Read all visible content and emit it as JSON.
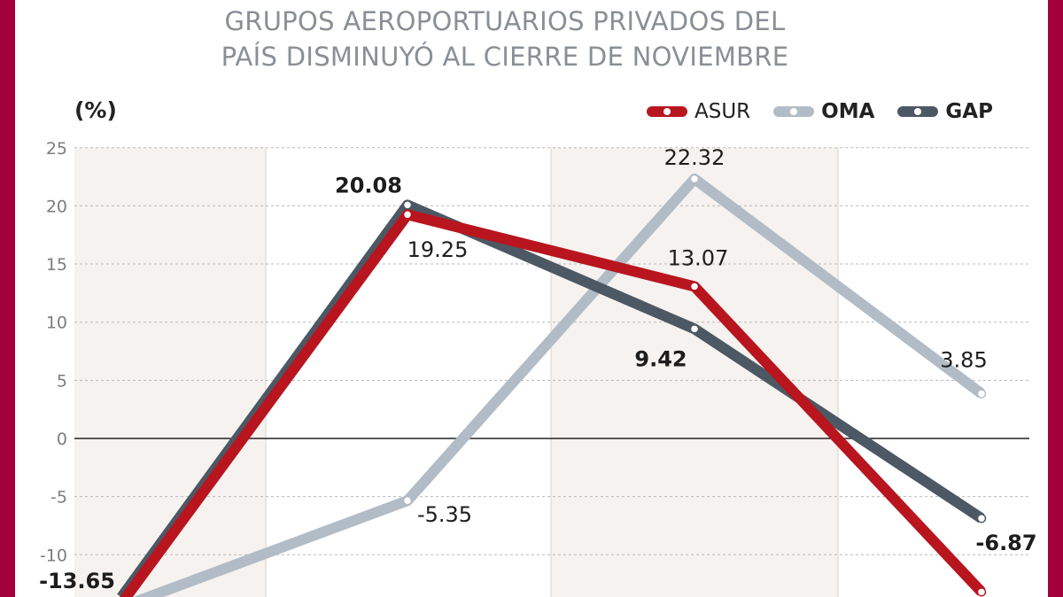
{
  "chart_data": {
    "type": "line",
    "title_lines": [
      "GRUPOS AEROPORTUARIOS PRIVADOS DEL",
      "PAÍS DISMINUYÓ AL CIERRE DE NOVIEMBRE"
    ],
    "ylabel": "(%)",
    "ylim": [
      -14,
      25
    ],
    "yticks": [
      25,
      20,
      15,
      10,
      5,
      0,
      -5,
      -10
    ],
    "ytick_labels": [
      "25",
      "20",
      "15",
      "10",
      "5",
      "0",
      "-5",
      "-10"
    ],
    "x": [
      0,
      1,
      2,
      3
    ],
    "legend_position": "top-right",
    "series": [
      {
        "name": "ASUR",
        "color": "#b8151f",
        "values": [
          -14.2,
          19.25,
          13.07,
          -13.2
        ],
        "labels": [
          "",
          "19.25",
          "13.07",
          ""
        ],
        "label_bold": false
      },
      {
        "name": "OMA",
        "color": "#b2bcc6",
        "values": [
          -14.5,
          -5.35,
          22.32,
          3.85
        ],
        "labels": [
          "",
          "-5.35",
          "22.32",
          "3.85"
        ],
        "label_bold": false
      },
      {
        "name": "GAP",
        "color": "#4c5863",
        "values": [
          -13.65,
          20.08,
          9.42,
          -6.87
        ],
        "labels": [
          "-13.65",
          "20.08",
          "9.42",
          "-6.87"
        ],
        "label_bold": true
      }
    ]
  }
}
